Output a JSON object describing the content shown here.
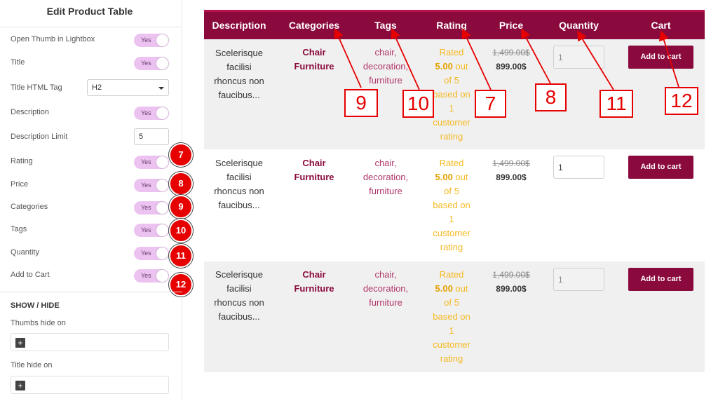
{
  "panel": {
    "title": "Edit Product Table",
    "rows": [
      {
        "label": "Open Thumb in Lightbox",
        "toggle": "Yes"
      },
      {
        "label": "Title",
        "toggle": "Yes"
      },
      {
        "label": "Title HTML Tag",
        "select": "H2"
      },
      {
        "label": "Description",
        "toggle": "Yes"
      },
      {
        "label": "Description Limit",
        "number": "5"
      },
      {
        "label": "Rating",
        "toggle": "Yes",
        "badge": "7"
      },
      {
        "label": "Price",
        "toggle": "Yes",
        "badge": "8"
      },
      {
        "label": "Categories",
        "toggle": "Yes",
        "badge": "9"
      },
      {
        "label": "Tags",
        "toggle": "Yes",
        "badge": "10"
      },
      {
        "label": "Quantity",
        "toggle": "Yes",
        "badge": "11"
      },
      {
        "label": "Add to Cart",
        "toggle": "Yes",
        "badge": "12"
      }
    ],
    "section_title": "SHOW / HIDE",
    "thumbs_hide_label": "Thumbs hide on",
    "title_hide_label": "Title hide on",
    "plus_glyph": "+"
  },
  "table": {
    "headers": [
      "Description",
      "Categories",
      "Tags",
      "Rating",
      "Price",
      "Quantity",
      "Cart"
    ],
    "rows": [
      {
        "description": [
          "Scelerisque",
          "facilisi",
          "rhoncus non",
          "faucibus..."
        ],
        "categories": [
          "Chair",
          "Furniture"
        ],
        "tags": [
          "chair,",
          "decoration,",
          "furniture"
        ],
        "rating_lines": [
          "Rated",
          "5.00 out",
          "of 5",
          "based on",
          "1",
          "customer",
          "rating"
        ],
        "old_price": "1,499.00$",
        "new_price": "899.00$",
        "quantity": "1",
        "cart_label": "Add to cart"
      },
      {
        "description": [
          "Scelerisque",
          "facilisi",
          "rhoncus non",
          "faucibus..."
        ],
        "categories": [
          "Chair",
          "Furniture"
        ],
        "tags": [
          "chair,",
          "decoration,",
          "furniture"
        ],
        "rating_lines": [
          "Rated",
          "5.00 out",
          "of 5",
          "based on",
          "1",
          "customer",
          "rating"
        ],
        "old_price": "1,499.00$",
        "new_price": "899.00$",
        "quantity": "1",
        "cart_label": "Add to cart"
      },
      {
        "description": [
          "Scelerisque",
          "facilisi",
          "rhoncus non",
          "faucibus..."
        ],
        "categories": [
          "Chair",
          "Furniture"
        ],
        "tags": [
          "chair,",
          "decoration,",
          "furniture"
        ],
        "rating_lines": [
          "Rated",
          "5.00 out",
          "of 5",
          "based on",
          "1",
          "customer",
          "rating"
        ],
        "old_price": "1,499.00$",
        "new_price": "899.00$",
        "quantity": "1",
        "cart_label": "Add to cart"
      }
    ]
  },
  "callouts": [
    "9",
    "10",
    "7",
    "8",
    "11",
    "12"
  ],
  "colors": {
    "accent": "#8a0a3d",
    "toggle_bg": "#ecc3f0",
    "rating": "#f5b921",
    "annotation": "#e60000",
    "row_alt": "#f0f0f0"
  }
}
